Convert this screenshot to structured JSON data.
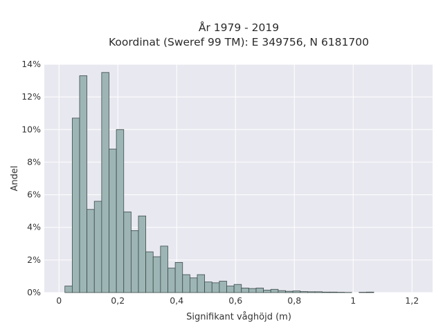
{
  "chart_data": {
    "type": "bar",
    "title": "År 1979 - 2019",
    "subtitle": "Koordinat (Sweref 99 TM): E 349756, N 6181700",
    "xlabel": "Signifikant våghöjd (m)",
    "ylabel": "Andel",
    "xlim": [
      -0.05,
      1.27
    ],
    "ylim": [
      0,
      14
    ],
    "x_ticks": [
      0,
      0.2,
      0.4,
      0.6,
      0.8,
      1,
      1.2
    ],
    "x_tick_labels": [
      "0",
      "0,2",
      "0,4",
      "0,6",
      "0,8",
      "1",
      "1,2"
    ],
    "y_ticks": [
      0,
      2,
      4,
      6,
      8,
      10,
      12,
      14
    ],
    "y_tick_labels": [
      "0%",
      "2%",
      "4%",
      "6%",
      "8%",
      "10%",
      "12%",
      "14%"
    ],
    "bin_width": 0.025,
    "bins_start": [
      0.02,
      0.045,
      0.07,
      0.095,
      0.12,
      0.145,
      0.17,
      0.195,
      0.22,
      0.245,
      0.27,
      0.295,
      0.32,
      0.345,
      0.37,
      0.395,
      0.42,
      0.445,
      0.47,
      0.495,
      0.52,
      0.545,
      0.57,
      0.595,
      0.62,
      0.645,
      0.67,
      0.695,
      0.72,
      0.745,
      0.77,
      0.795,
      0.82,
      0.845,
      0.87,
      0.895,
      0.92,
      0.945,
      0.97,
      0.995,
      1.02,
      1.045
    ],
    "values": [
      0.4,
      10.7,
      13.3,
      5.1,
      5.6,
      13.5,
      8.8,
      10.0,
      4.95,
      3.8,
      4.7,
      2.5,
      2.2,
      2.85,
      1.5,
      1.85,
      1.1,
      0.9,
      1.1,
      0.65,
      0.6,
      0.7,
      0.4,
      0.5,
      0.28,
      0.25,
      0.28,
      0.15,
      0.2,
      0.12,
      0.08,
      0.1,
      0.06,
      0.05,
      0.05,
      0.03,
      0.03,
      0.02,
      0.01,
      0.0,
      0.02,
      0.03
    ],
    "grid": true,
    "colors": {
      "bar_fill": "#9db5b5",
      "bar_edge": "#3c4a4a",
      "plot_bg": "#e8e8f0"
    }
  }
}
